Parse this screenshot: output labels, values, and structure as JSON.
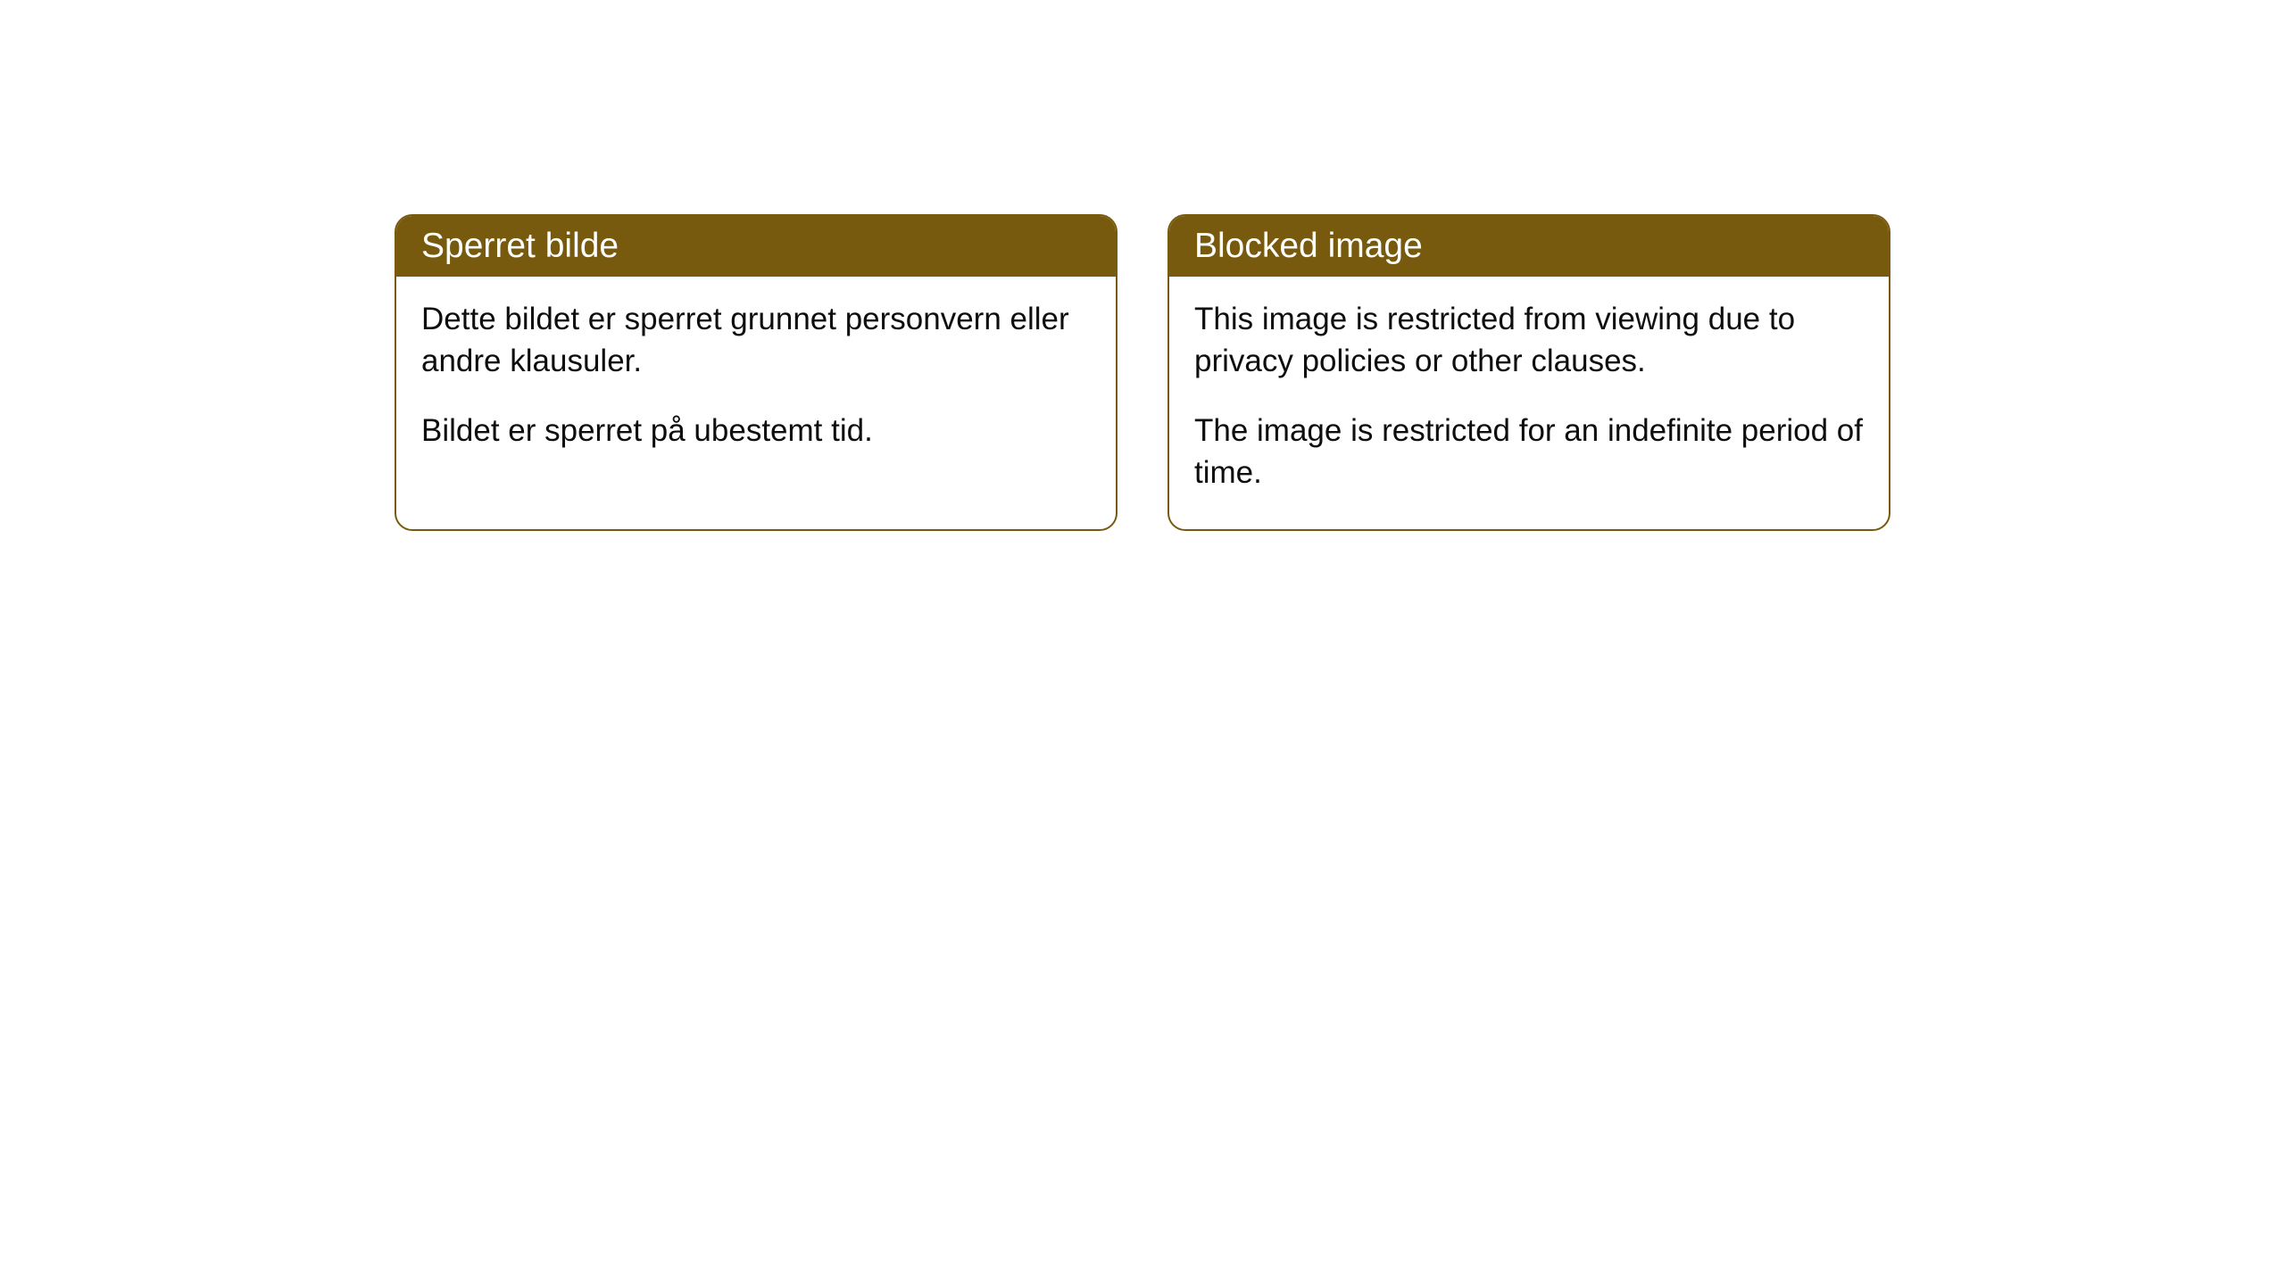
{
  "cards": [
    {
      "title": "Sperret bilde",
      "para1": "Dette bildet er sperret grunnet personvern eller andre klausuler.",
      "para2": "Bildet er sperret på ubestemt tid."
    },
    {
      "title": "Blocked image",
      "para1": "This image is restricted from viewing due to privacy policies or other clauses.",
      "para2": "The image is restricted for an indefinite period of time."
    }
  ],
  "colors": {
    "header_bg": "#785a0e",
    "header_text": "#ffffff",
    "card_border": "#785a0e",
    "body_text": "#0e0e0e",
    "page_bg": "#ffffff"
  }
}
